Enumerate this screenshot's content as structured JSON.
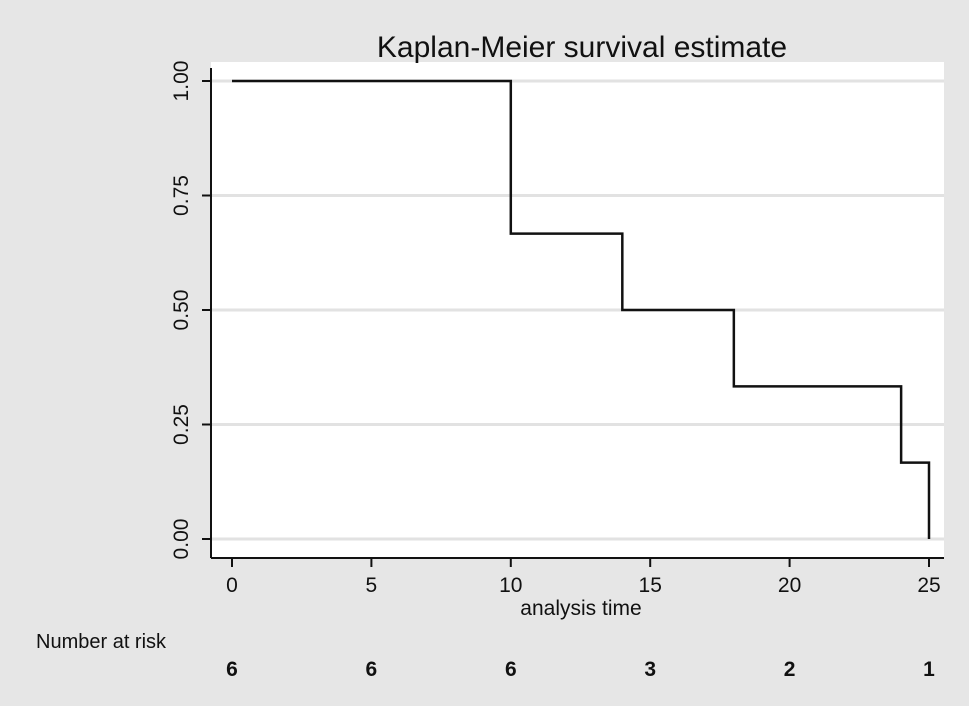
{
  "chart_data": {
    "type": "line",
    "title": "Kaplan-Meier survival estimate",
    "xlabel": "analysis time",
    "ylabel": "",
    "xlim": [
      0,
      25
    ],
    "ylim": [
      0,
      1
    ],
    "grid": true,
    "x_ticks": [
      0,
      5,
      10,
      15,
      20,
      25
    ],
    "y_ticks": [
      "0.00",
      "0.25",
      "0.50",
      "0.75",
      "1.00"
    ],
    "series": [
      {
        "step": "post",
        "x": [
          0,
          10,
          14,
          18,
          24,
          25
        ],
        "y": [
          1.0,
          0.6667,
          0.5,
          0.3333,
          0.1667,
          0.0
        ]
      }
    ],
    "risk_table": {
      "title": "Number at risk",
      "times": [
        0,
        5,
        10,
        15,
        20,
        25
      ],
      "values": [
        "6",
        "6",
        "6",
        "3",
        "2",
        "1"
      ]
    }
  },
  "colors": {
    "background": "#e6e6e6",
    "plot_area": "#ffffff",
    "gridline": "#e2e2e2",
    "line": "#111111"
  }
}
